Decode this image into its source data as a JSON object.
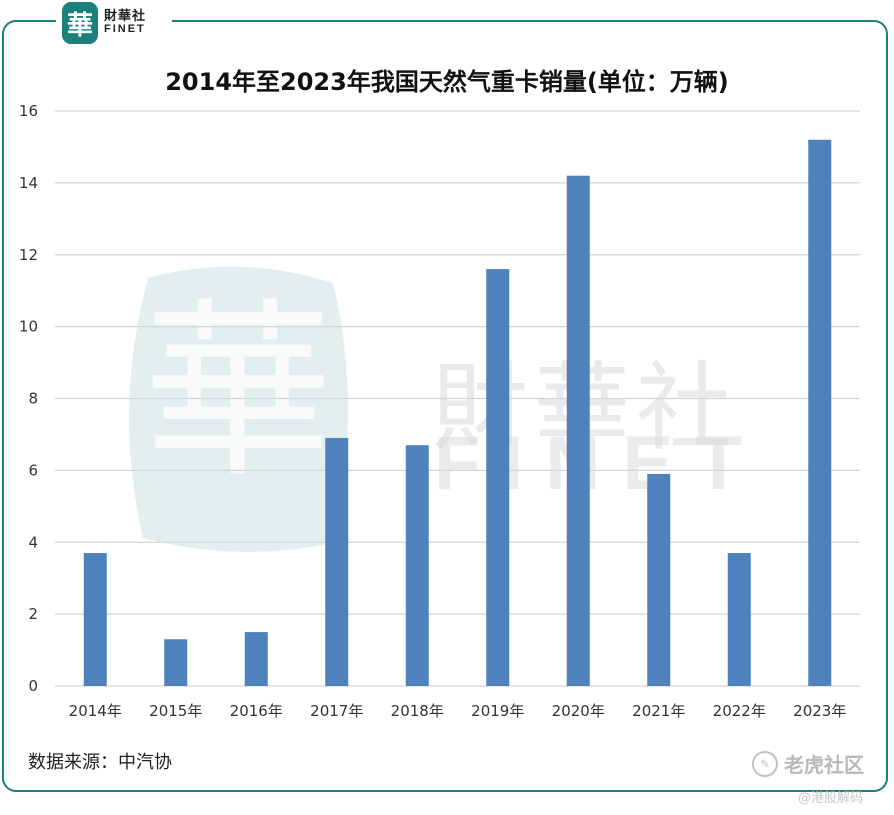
{
  "logo": {
    "glyph": "華",
    "cn": "財華社",
    "en": "FINET"
  },
  "chart_data": {
    "type": "bar",
    "title": "2014年至2023年我国天然气重卡销量(单位：万辆)",
    "categories": [
      "2014年",
      "2015年",
      "2016年",
      "2017年",
      "2018年",
      "2019年",
      "2020年",
      "2021年",
      "2022年",
      "2023年"
    ],
    "values": [
      3.7,
      1.3,
      1.5,
      6.9,
      6.7,
      11.6,
      14.2,
      5.9,
      3.7,
      15.2
    ],
    "ylim": [
      0,
      16
    ],
    "yticks": [
      0,
      2,
      4,
      6,
      8,
      10,
      12,
      14,
      16
    ],
    "grid": true,
    "bar_color": "#4f81bd",
    "xlabel": "",
    "ylabel": ""
  },
  "source": "数据来源：中汽协",
  "watermark": {
    "cn": "財華社",
    "en": "FINET",
    "glyph": "華"
  },
  "brand": {
    "name": "老虎社区",
    "sub": "@港股解码"
  }
}
